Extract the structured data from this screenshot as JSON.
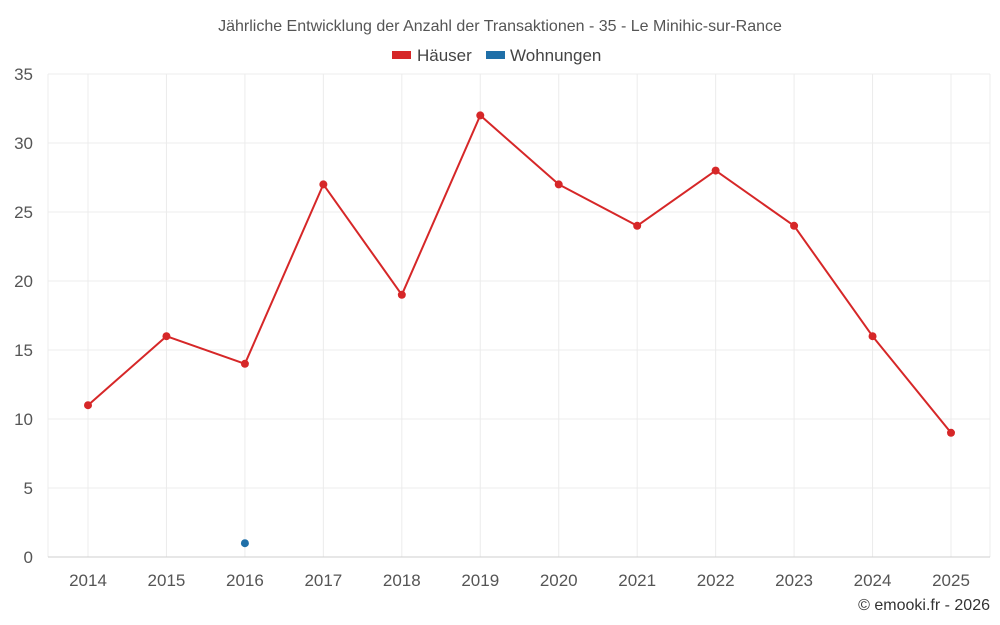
{
  "chart_data": {
    "type": "line",
    "title": "Jährliche Entwicklung der Anzahl der Transaktionen - 35 - Le Minihic-sur-Rance",
    "categories": [
      "2014",
      "2015",
      "2016",
      "2017",
      "2018",
      "2019",
      "2020",
      "2021",
      "2022",
      "2023",
      "2024",
      "2025"
    ],
    "ylim": [
      0,
      35
    ],
    "yticks": [
      0,
      5,
      10,
      15,
      20,
      25,
      30,
      35
    ],
    "series": [
      {
        "name": "Häuser",
        "color": "#d62728",
        "values": [
          11,
          16,
          14,
          27,
          19,
          32,
          27,
          24,
          28,
          24,
          16,
          9
        ]
      },
      {
        "name": "Wohnungen",
        "color": "#1f6fa8",
        "values": [
          null,
          null,
          1,
          null,
          null,
          null,
          null,
          null,
          null,
          null,
          null,
          null
        ]
      }
    ],
    "legend_position": "top-center",
    "grid": true
  },
  "credit": "© emooki.fr - 2026"
}
